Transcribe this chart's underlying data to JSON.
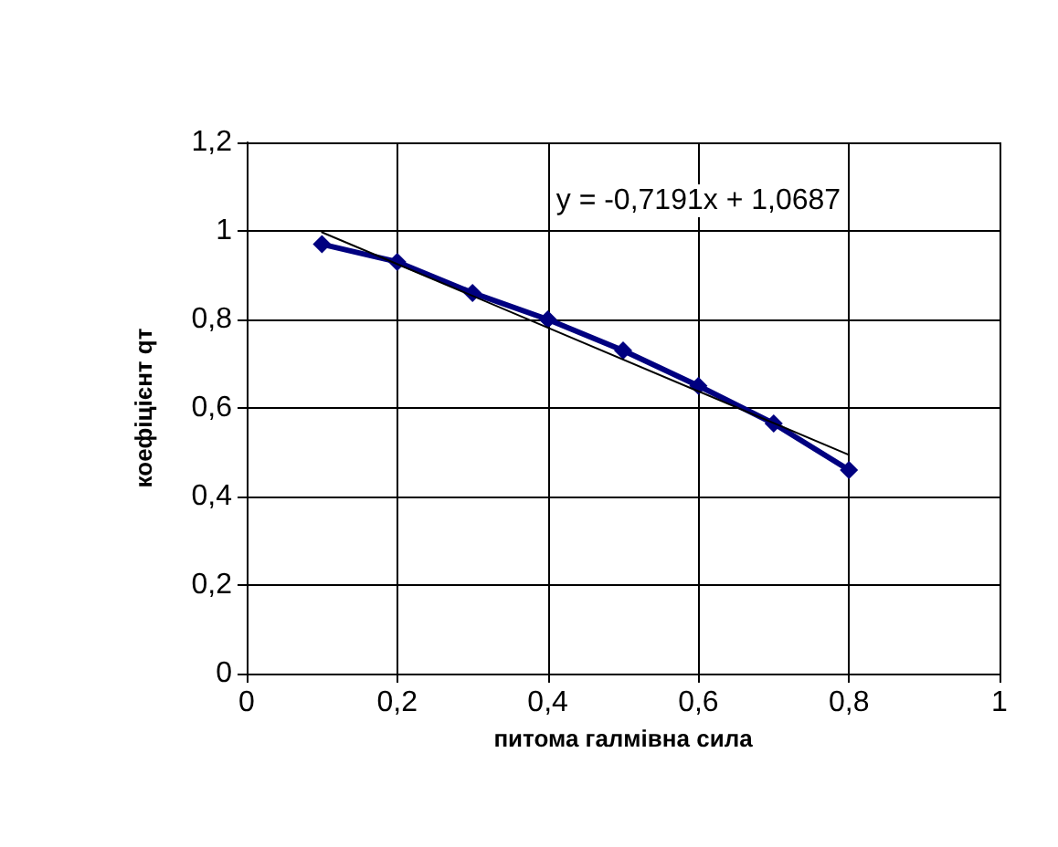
{
  "chart_data": {
    "type": "line",
    "xlabel": "питома галмівна сила",
    "ylabel": "коефіцієнт qт",
    "series": [
      {
        "color": "#000080",
        "x": [
          0.1,
          0.2,
          0.3,
          0.4,
          0.5,
          0.6,
          0.7,
          0.8
        ],
        "values": [
          0.97,
          0.93,
          0.86,
          0.8,
          0.73,
          0.65,
          0.565,
          0.46
        ],
        "marker": "diamond"
      },
      {
        "type": "line",
        "color": "#000000",
        "x": [
          0.1,
          0.8
        ],
        "values": [
          0.997,
          0.494
        ],
        "marker": "none"
      }
    ],
    "annotations": [
      "y = -0,7191x + 1,0687"
    ],
    "xlim": [
      0,
      1
    ],
    "ylim": [
      0,
      1.2
    ],
    "xticks": [
      0,
      {
        "value": 0.2,
        "label": "0,2"
      },
      {
        "value": 0.4,
        "label": "0,4"
      },
      {
        "value": 0.6,
        "label": "0,6"
      },
      {
        "value": 0.8,
        "label": "0,8"
      },
      1
    ],
    "yticks": [
      0,
      {
        "value": 0.2,
        "label": "0,2"
      },
      {
        "value": 0.4,
        "label": "0,4"
      },
      {
        "value": 0.6,
        "label": "0,6"
      },
      {
        "value": 0.8,
        "label": "0,8"
      },
      1,
      {
        "value": 1.2,
        "label": "1,2"
      }
    ],
    "grid": true,
    "line_style": "solid"
  }
}
